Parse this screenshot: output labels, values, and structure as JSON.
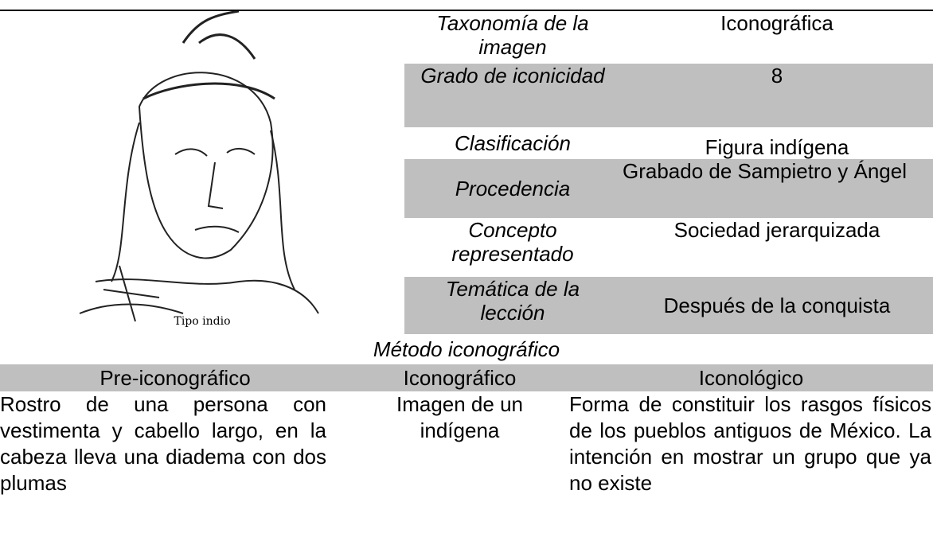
{
  "figure": {
    "caption": "Tipo indio"
  },
  "table": {
    "rows": [
      [
        "Taxonomía de la imagen",
        "Iconográfica"
      ],
      [
        "Grado de iconicidad",
        "8"
      ],
      [
        "Clasificación",
        "Figura indígena"
      ],
      [
        "Procedencia",
        "Grabado de Sampietro y Ángel"
      ],
      [
        "Concepto representado",
        "Sociedad jerarquizada"
      ],
      [
        "Temática de la lección",
        "Después de la conquista"
      ]
    ]
  },
  "method": {
    "title": "Método iconográfico",
    "headers": [
      "Pre-iconográfico",
      "Iconográfico",
      "Iconológico"
    ],
    "cells": [
      "Rostro de una persona con vestimenta y cabello largo, en la cabeza lleva una diadema con dos plumas",
      "Imagen de un indígena",
      "Forma de constituir los rasgos físicos de los pueblos antiguos de México. La intención en mostrar un grupo que ya no existe"
    ]
  }
}
